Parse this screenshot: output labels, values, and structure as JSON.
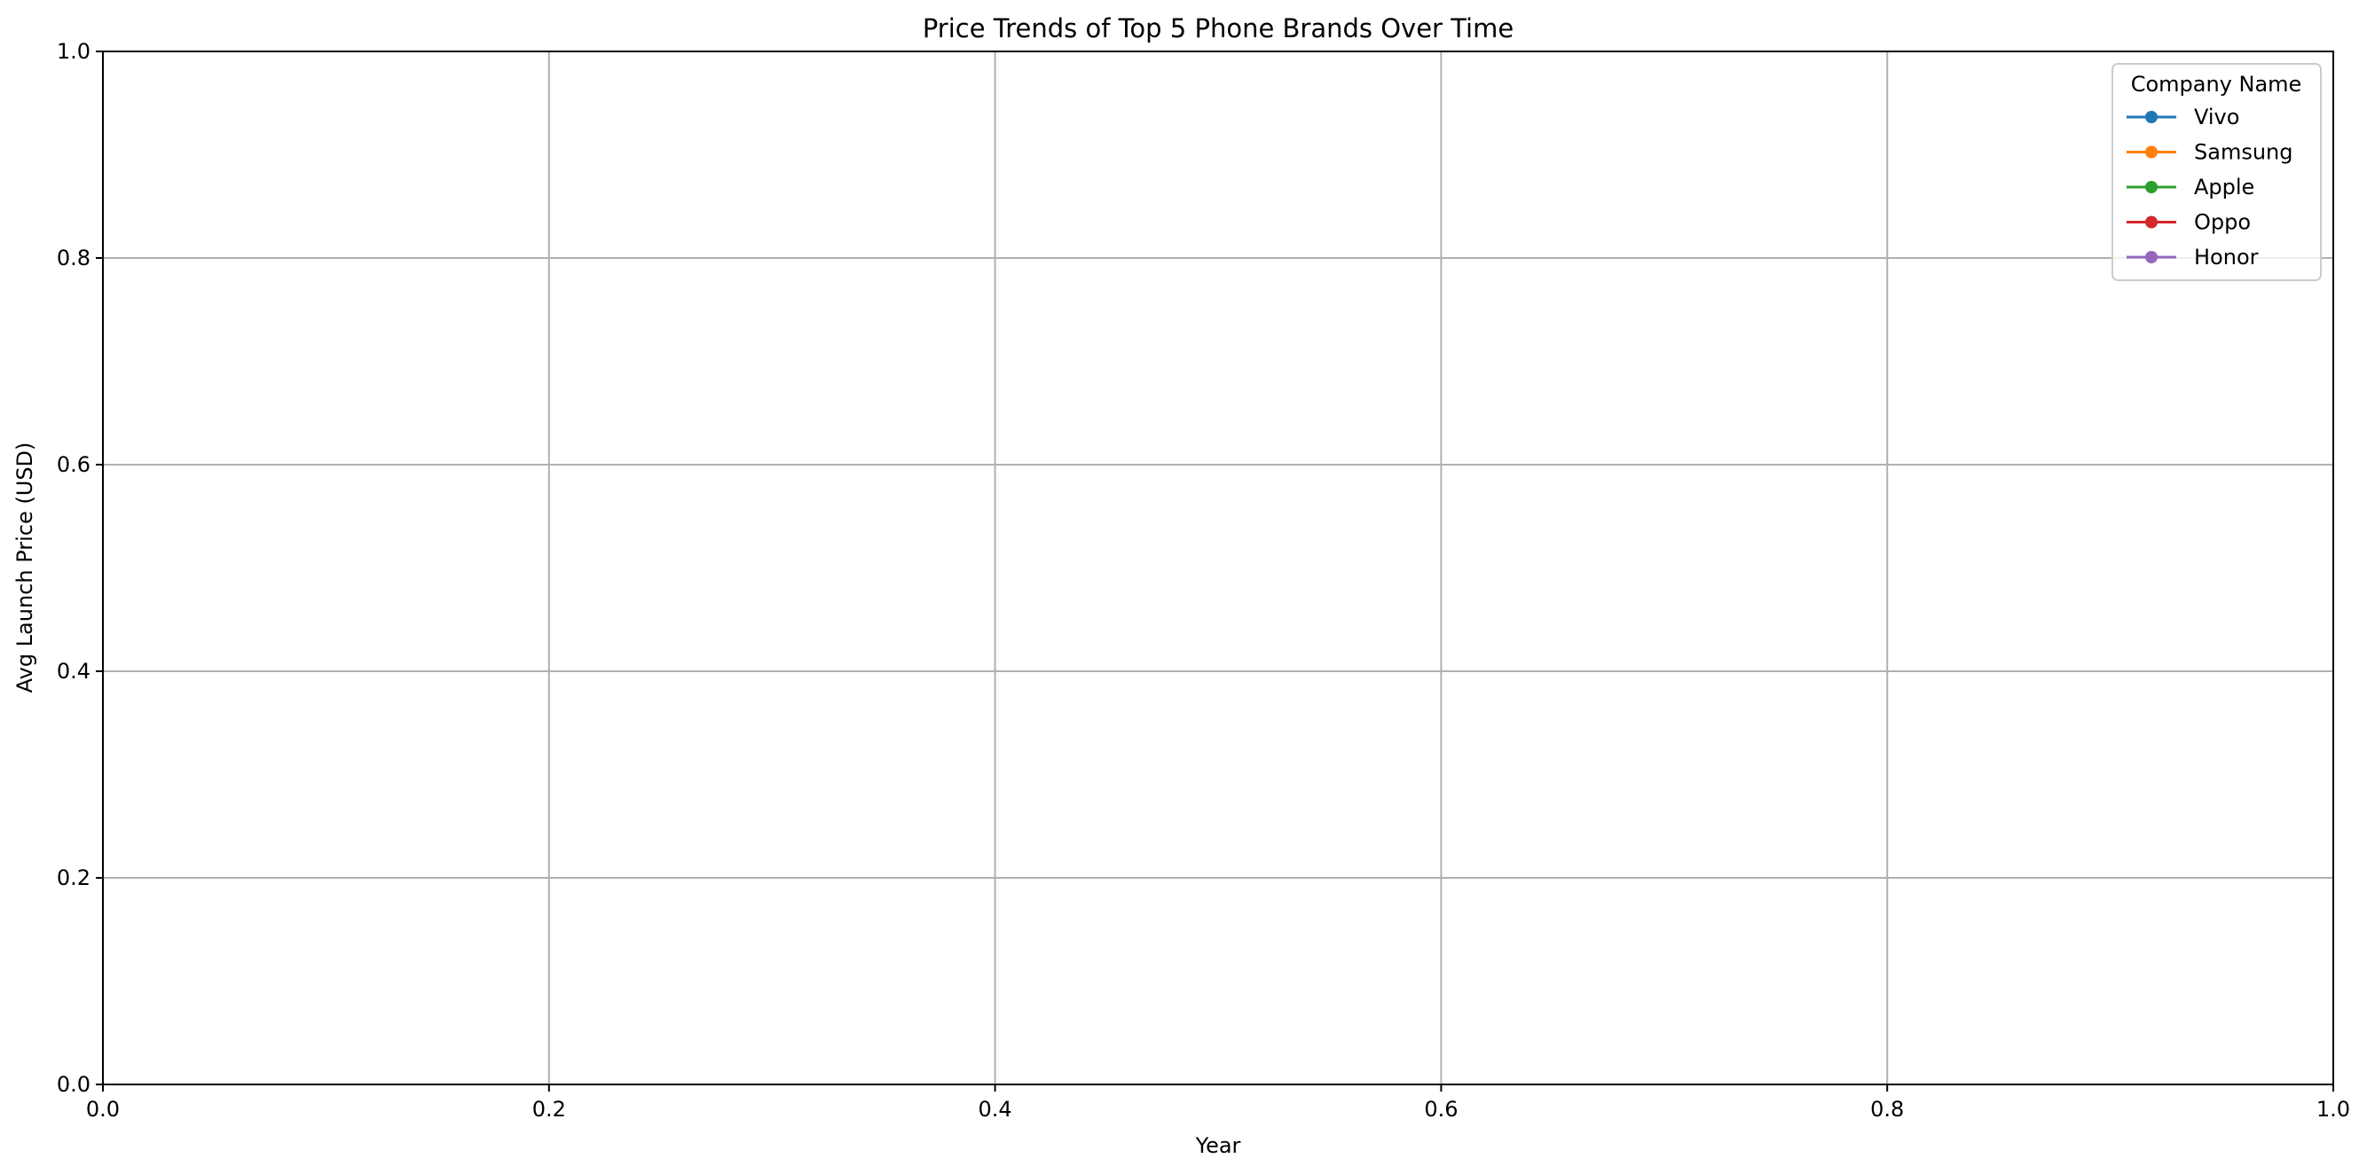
{
  "chart_data": {
    "type": "line",
    "title": "Price Trends of Top 5 Phone Brands Over Time",
    "xlabel": "Year",
    "ylabel": "Avg Launch Price (USD)",
    "xlim": [
      0.0,
      1.0
    ],
    "ylim": [
      0.0,
      1.0
    ],
    "xticks": [
      "0.0",
      "0.2",
      "0.4",
      "0.6",
      "0.8",
      "1.0"
    ],
    "yticks": [
      "0.0",
      "0.2",
      "0.4",
      "0.6",
      "0.8",
      "1.0"
    ],
    "grid": true,
    "legend": {
      "title": "Company Name",
      "placement": "top-right"
    },
    "series": [
      {
        "name": "Vivo",
        "color": "#1f77b4",
        "marker": "circle",
        "x": [],
        "y": []
      },
      {
        "name": "Samsung",
        "color": "#ff7f0e",
        "marker": "circle",
        "x": [],
        "y": []
      },
      {
        "name": "Apple",
        "color": "#2ca02c",
        "marker": "circle",
        "x": [],
        "y": []
      },
      {
        "name": "Oppo",
        "color": "#d62728",
        "marker": "circle",
        "x": [],
        "y": []
      },
      {
        "name": "Honor",
        "color": "#9467bd",
        "marker": "circle",
        "x": [],
        "y": []
      }
    ]
  }
}
